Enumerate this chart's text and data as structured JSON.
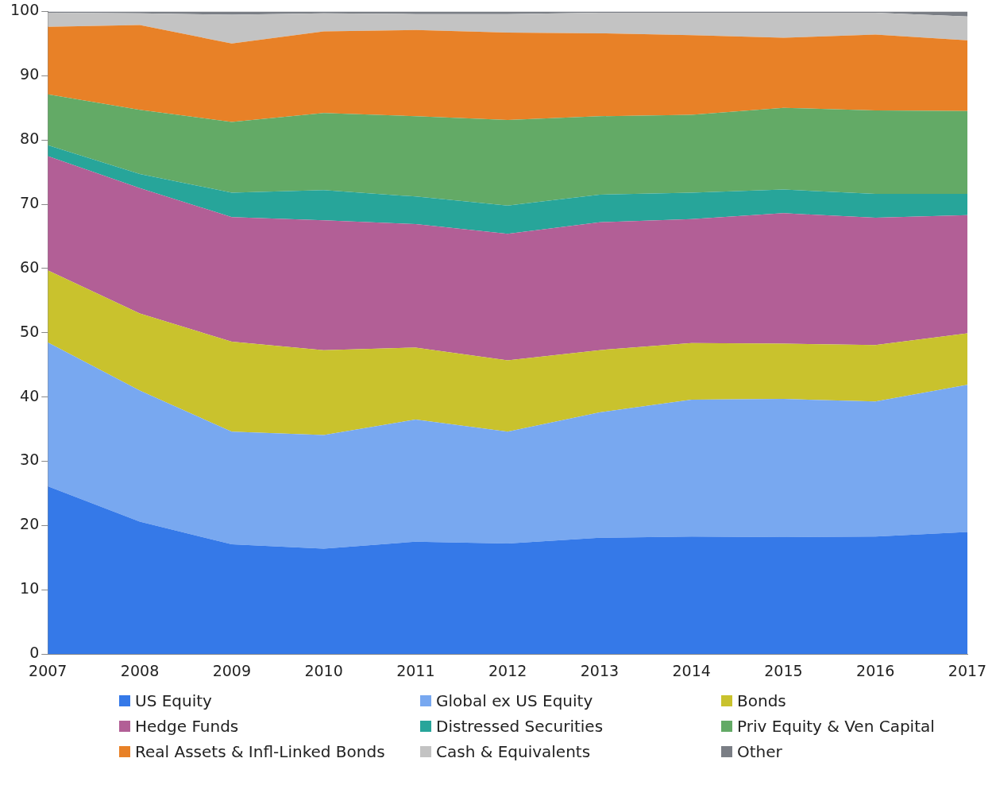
{
  "chart_data": {
    "type": "area",
    "stacked": true,
    "categories": [
      "2007",
      "2008",
      "2009",
      "2010",
      "2011",
      "2012",
      "2013",
      "2014",
      "2015",
      "2016",
      "2017"
    ],
    "ylim": [
      0,
      100
    ],
    "yticks": [
      0,
      10,
      20,
      30,
      40,
      50,
      60,
      70,
      80,
      90,
      100
    ],
    "grid": false,
    "legend": "bottom",
    "marker": "none",
    "series": [
      {
        "name": "US Equity",
        "color": "#3579e8",
        "values": [
          26.1,
          20.6,
          17.1,
          16.4,
          17.5,
          17.2,
          18.1,
          18.3,
          18.2,
          18.3,
          19.0
        ]
      },
      {
        "name": "Global ex US Equity",
        "color": "#78a8f0",
        "values": [
          22.4,
          20.4,
          17.5,
          17.7,
          19.0,
          17.4,
          19.5,
          21.3,
          21.5,
          21.0,
          22.9
        ]
      },
      {
        "name": "Bonds",
        "color": "#c9c22d",
        "values": [
          11.2,
          12.0,
          14.0,
          13.2,
          11.2,
          11.1,
          9.7,
          8.8,
          8.6,
          8.8,
          8.0
        ]
      },
      {
        "name": "Hedge Funds",
        "color": "#b25f96",
        "values": [
          17.8,
          19.5,
          19.4,
          20.2,
          19.2,
          19.7,
          19.9,
          19.3,
          20.3,
          19.8,
          18.4
        ]
      },
      {
        "name": "Distressed Securities",
        "color": "#27a59a",
        "values": [
          1.7,
          2.2,
          3.8,
          4.7,
          4.3,
          4.4,
          4.3,
          4.1,
          3.7,
          3.7,
          3.3
        ]
      },
      {
        "name": "Priv Equity & Ven Capital",
        "color": "#63aa66",
        "values": [
          7.9,
          10.0,
          11.0,
          12.0,
          12.5,
          13.3,
          12.2,
          12.1,
          12.7,
          13.0,
          12.9
        ]
      },
      {
        "name": "Real Assets & Infl-Linked Bonds",
        "color": "#e88127",
        "values": [
          10.5,
          13.2,
          12.2,
          12.7,
          13.4,
          13.6,
          12.9,
          12.4,
          10.9,
          11.8,
          11.0
        ]
      },
      {
        "name": "Cash & Equivalents",
        "color": "#c3c3c3",
        "values": [
          2.2,
          1.8,
          4.5,
          2.8,
          2.5,
          2.9,
          3.2,
          3.5,
          3.9,
          3.4,
          3.7
        ]
      },
      {
        "name": "Other",
        "color": "#7a7e85",
        "values": [
          0.2,
          0.3,
          0.5,
          0.3,
          0.4,
          0.4,
          0.2,
          0.2,
          0.2,
          0.2,
          0.8
        ]
      }
    ]
  }
}
